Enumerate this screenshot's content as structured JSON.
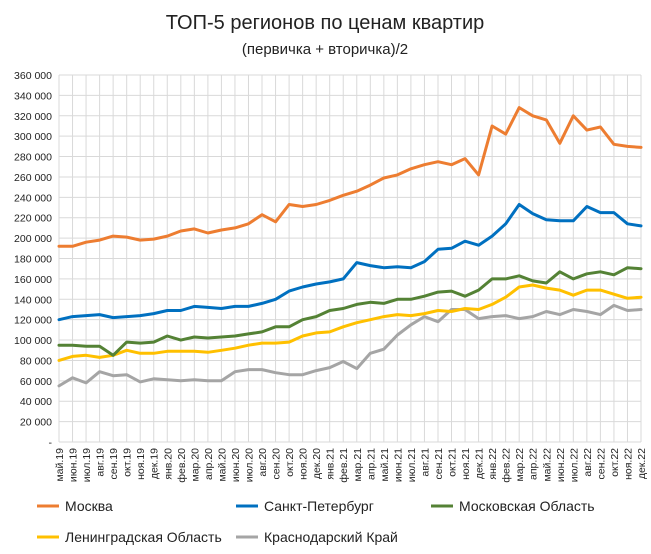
{
  "chart_data": {
    "type": "line",
    "title": "ТОП-5 регионов по ценам квартир",
    "subtitle": "(первичка + вторичка)/2",
    "xlabel": "",
    "ylabel": "",
    "ylim": [
      0,
      360000
    ],
    "yticks": [
      "-",
      "20 000",
      "40 000",
      "60 000",
      "80 000",
      "100 000",
      "120 000",
      "140 000",
      "160 000",
      "180 000",
      "200 000",
      "220 000",
      "240 000",
      "260 000",
      "280 000",
      "300 000",
      "320 000",
      "340 000",
      "360 000"
    ],
    "grid": true,
    "legend_position": "bottom",
    "categories": [
      "май.19",
      "июн.19",
      "июл.19",
      "авг.19",
      "сен.19",
      "окт.19",
      "ноя.19",
      "дек.19",
      "янв.20",
      "фев.20",
      "мар.20",
      "апр.20",
      "май.20",
      "июн.20",
      "июл.20",
      "авг.20",
      "сен.20",
      "окт.20",
      "ноя.20",
      "дек.20",
      "янв.21",
      "фев.21",
      "мар.21",
      "апр.21",
      "май.21",
      "июн.21",
      "июл.21",
      "авг.21",
      "сен.21",
      "окт.21",
      "ноя.21",
      "дек.21",
      "янв.22",
      "фев.22",
      "мар.22",
      "апр.22",
      "май.22",
      "июн.22",
      "июл.22",
      "авг.22",
      "сен.22",
      "окт.22",
      "ноя.22",
      "дек.22"
    ],
    "series": [
      {
        "name": "Москва",
        "color": "#ED7D31",
        "values": [
          192000,
          192000,
          196000,
          198000,
          202000,
          201000,
          198000,
          199000,
          202000,
          207000,
          209000,
          205000,
          208000,
          210000,
          214000,
          223000,
          216000,
          233000,
          231000,
          233000,
          237000,
          242000,
          246000,
          252000,
          259000,
          262000,
          268000,
          272000,
          275000,
          272000,
          278000,
          262000,
          310000,
          302000,
          328000,
          320000,
          316000,
          293000,
          320000,
          306000,
          309000,
          292000,
          290000,
          289000
        ]
      },
      {
        "name": "Санкт-Петербург",
        "color": "#0070C0",
        "values": [
          120000,
          123000,
          124000,
          125000,
          122000,
          123000,
          124000,
          126000,
          129000,
          129000,
          133000,
          132000,
          131000,
          133000,
          133000,
          136000,
          140000,
          148000,
          152000,
          155000,
          157000,
          160000,
          176000,
          173000,
          171000,
          172000,
          171000,
          177000,
          189000,
          190000,
          197000,
          193000,
          202000,
          214000,
          233000,
          224000,
          218000,
          217000,
          217000,
          231000,
          225000,
          225000,
          214000,
          212000
        ]
      },
      {
        "name": "Московская Область",
        "color": "#548235",
        "values": [
          95000,
          95000,
          94000,
          94000,
          85000,
          98000,
          97000,
          98000,
          104000,
          100000,
          103000,
          102000,
          103000,
          104000,
          106000,
          108000,
          113000,
          113000,
          120000,
          123000,
          129000,
          131000,
          135000,
          137000,
          136000,
          140000,
          140000,
          143000,
          147000,
          148000,
          143000,
          149000,
          160000,
          160000,
          163000,
          158000,
          156000,
          167000,
          160000,
          165000,
          167000,
          164000,
          171000,
          170000
        ]
      },
      {
        "name": "Ленинградская Область",
        "color": "#FFC000",
        "values": [
          80000,
          84000,
          85000,
          83000,
          85000,
          90000,
          87000,
          87000,
          89000,
          89000,
          89000,
          88000,
          90000,
          92000,
          95000,
          97000,
          97000,
          98000,
          104000,
          107000,
          108000,
          113000,
          117000,
          120000,
          123000,
          125000,
          124000,
          126000,
          129000,
          128000,
          131000,
          130000,
          135000,
          142000,
          152000,
          154000,
          151000,
          149000,
          144000,
          149000,
          149000,
          145000,
          141000,
          142000
        ]
      },
      {
        "name": "Краснодарский Край",
        "color": "#A5A5A5",
        "values": [
          55000,
          63000,
          58000,
          69000,
          65000,
          66000,
          59000,
          62000,
          61000,
          60000,
          61000,
          60000,
          60000,
          69000,
          71000,
          71000,
          68000,
          66000,
          66000,
          70000,
          73000,
          79000,
          72000,
          87000,
          91000,
          105000,
          115000,
          123000,
          118000,
          130000,
          130000,
          121000,
          123000,
          124000,
          121000,
          123000,
          128000,
          125000,
          130000,
          128000,
          125000,
          134000,
          129000,
          130000
        ]
      }
    ]
  }
}
